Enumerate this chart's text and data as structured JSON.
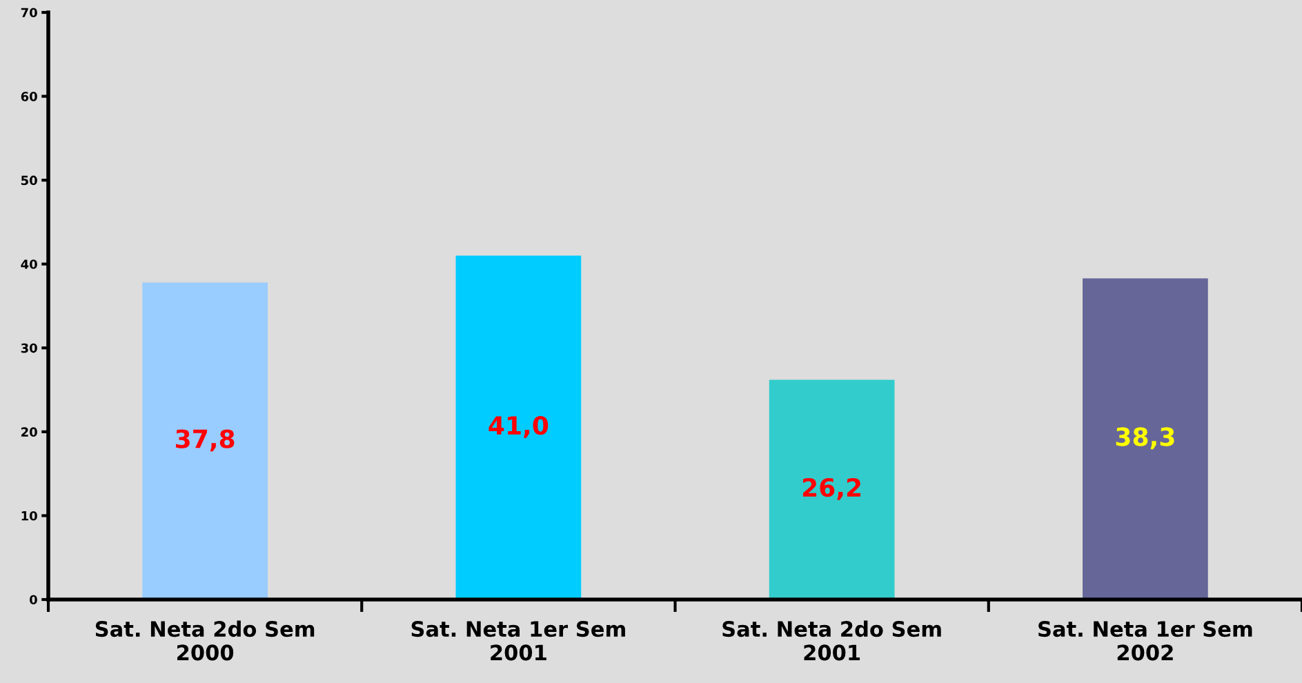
{
  "chart_data": {
    "type": "bar",
    "categories": [
      "Sat. Neta 2do Sem\n2000",
      "Sat. Neta 1er Sem\n2001",
      "Sat. Neta 2do Sem\n2001",
      "Sat. Neta 1er Sem\n2002"
    ],
    "values": [
      37.8,
      41.0,
      26.2,
      38.3
    ],
    "colors": [
      "#99ccff",
      "#00ccff",
      "#33cccc",
      "#666699"
    ],
    "value_labels": [
      "37,8",
      "41,0",
      "26,2",
      "38,3"
    ],
    "ylim": [
      0,
      70
    ],
    "yticks": [
      0,
      10,
      20,
      30,
      40,
      50,
      60,
      70
    ],
    "grid": false,
    "legend": false
  }
}
